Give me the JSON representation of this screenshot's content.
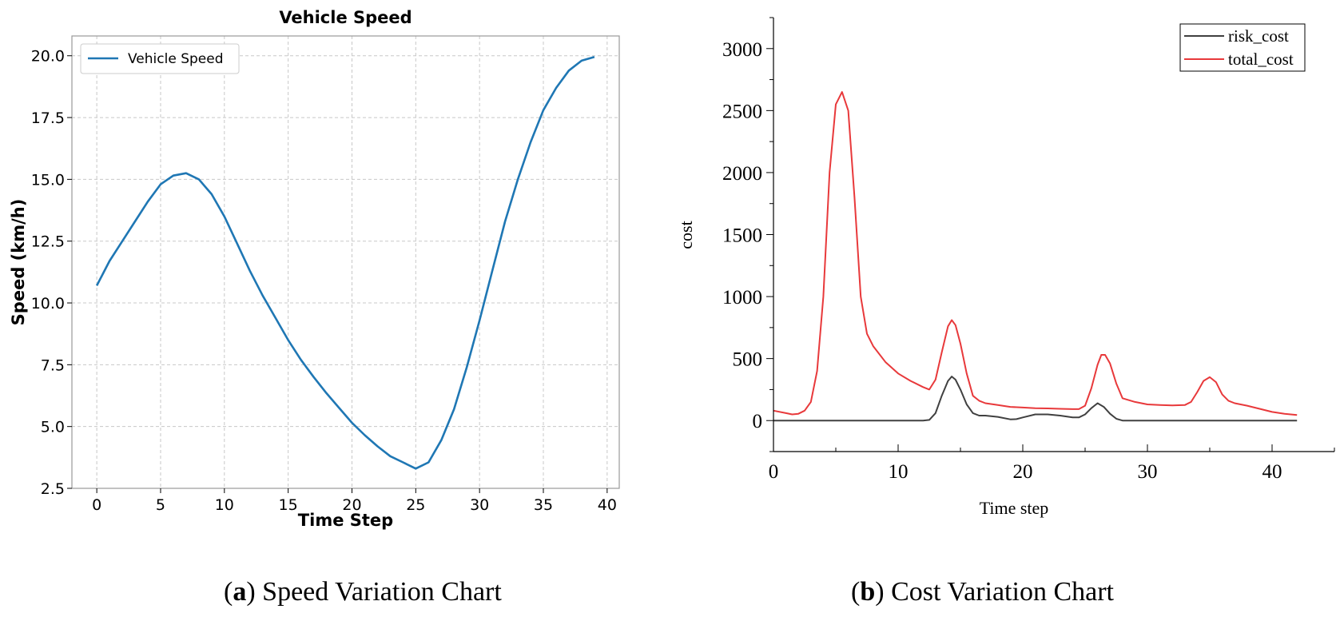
{
  "colors": {
    "speed_line": "#1f77b4",
    "risk_cost": "#404040",
    "total_cost": "#e8393b",
    "grid": "#c8c8c8",
    "axis": "#000000"
  },
  "captions": {
    "a": {
      "letter": "a",
      "text": "Speed Variation Chart"
    },
    "b": {
      "letter": "b",
      "text": "Cost Variation Chart"
    }
  },
  "chart_data": [
    {
      "type": "line",
      "title": "Vehicle Speed",
      "xlabel": "Time Step",
      "ylabel": "Speed (km/h)",
      "xlim": [
        -1.95,
        40.95
      ],
      "ylim": [
        2.5,
        20.8
      ],
      "xticks": [
        0,
        5,
        10,
        15,
        20,
        25,
        30,
        35,
        40
      ],
      "yticks": [
        2.5,
        5.0,
        7.5,
        10.0,
        12.5,
        15.0,
        17.5,
        20.0
      ],
      "xtick_labels": [
        "0",
        "5",
        "10",
        "15",
        "20",
        "25",
        "30",
        "35",
        "40"
      ],
      "ytick_labels": [
        "2.5",
        "5.0",
        "7.5",
        "10.0",
        "12.5",
        "15.0",
        "17.5",
        "20.0"
      ],
      "grid": true,
      "legend_position": "top-left",
      "series": [
        {
          "name": "Vehicle Speed",
          "x": [
            0,
            1,
            2,
            3,
            4,
            5,
            6,
            7,
            8,
            9,
            10,
            11,
            12,
            13,
            14,
            15,
            16,
            17,
            18,
            19,
            20,
            21,
            22,
            23,
            24,
            25,
            26,
            27,
            28,
            29,
            30,
            31,
            32,
            33,
            34,
            35,
            36,
            37,
            38,
            39
          ],
          "values": [
            10.7,
            11.7,
            12.5,
            13.3,
            14.1,
            14.8,
            15.15,
            15.25,
            15.0,
            14.4,
            13.5,
            12.4,
            11.3,
            10.3,
            9.4,
            8.5,
            7.7,
            7.0,
            6.35,
            5.75,
            5.15,
            4.65,
            4.2,
            3.8,
            3.55,
            3.3,
            3.55,
            4.45,
            5.7,
            7.4,
            9.3,
            11.3,
            13.3,
            15.0,
            16.5,
            17.8,
            18.7,
            19.4,
            19.8,
            19.95
          ]
        }
      ]
    },
    {
      "type": "line",
      "title": "",
      "xlabel": "Time step",
      "ylabel": "cost",
      "xlim": [
        0,
        45
      ],
      "ylim": [
        -250,
        3250
      ],
      "xticks": [
        0,
        10,
        20,
        30,
        40
      ],
      "yticks": [
        0,
        500,
        1000,
        1500,
        2000,
        2500,
        3000
      ],
      "xtick_labels": [
        "0",
        "10",
        "20",
        "30",
        "40"
      ],
      "ytick_labels": [
        "0",
        "500",
        "1000",
        "1500",
        "2000",
        "2500",
        "3000"
      ],
      "grid": false,
      "legend_position": "top-right",
      "series": [
        {
          "name": "risk_cost",
          "x": [
            0,
            2,
            4,
            6,
            8,
            10,
            11,
            12,
            12.5,
            13,
            13.5,
            14,
            14.3,
            14.6,
            15,
            15.5,
            16,
            16.5,
            17,
            18,
            19,
            19.5,
            20,
            21,
            22,
            23,
            24,
            24.5,
            25,
            25.5,
            26,
            26.5,
            27,
            27.5,
            28,
            30,
            35,
            40,
            42
          ],
          "values": [
            0,
            0,
            0,
            0,
            0,
            0,
            0,
            0,
            5,
            60,
            200,
            320,
            355,
            330,
            250,
            130,
            60,
            40,
            40,
            30,
            10,
            12,
            25,
            50,
            50,
            40,
            25,
            25,
            50,
            100,
            140,
            110,
            55,
            15,
            0,
            0,
            0,
            0,
            0
          ]
        },
        {
          "name": "total_cost",
          "x": [
            0,
            1,
            1.5,
            2,
            2.5,
            3,
            3.5,
            4,
            4.5,
            5,
            5.5,
            6,
            6.5,
            7,
            7.5,
            8,
            9,
            10,
            11,
            12,
            12.5,
            13,
            13.5,
            14,
            14.3,
            14.6,
            15,
            15.5,
            16,
            16.5,
            17,
            18,
            19,
            20,
            21,
            22,
            23,
            24,
            24.5,
            25,
            25.5,
            26,
            26.3,
            26.6,
            27,
            27.5,
            28,
            29,
            30,
            31,
            32,
            33,
            33.5,
            34,
            34.5,
            35,
            35.5,
            36,
            36.5,
            37,
            38,
            39,
            40,
            41,
            42
          ],
          "values": [
            80,
            60,
            50,
            55,
            80,
            150,
            400,
            1000,
            2000,
            2550,
            2650,
            2500,
            1800,
            1000,
            700,
            600,
            470,
            380,
            320,
            270,
            250,
            330,
            550,
            760,
            810,
            770,
            620,
            380,
            200,
            160,
            140,
            125,
            110,
            105,
            100,
            98,
            95,
            92,
            92,
            120,
            260,
            450,
            530,
            530,
            460,
            300,
            180,
            150,
            130,
            125,
            122,
            125,
            150,
            230,
            320,
            350,
            310,
            210,
            160,
            140,
            120,
            95,
            70,
            55,
            45
          ]
        }
      ]
    }
  ]
}
